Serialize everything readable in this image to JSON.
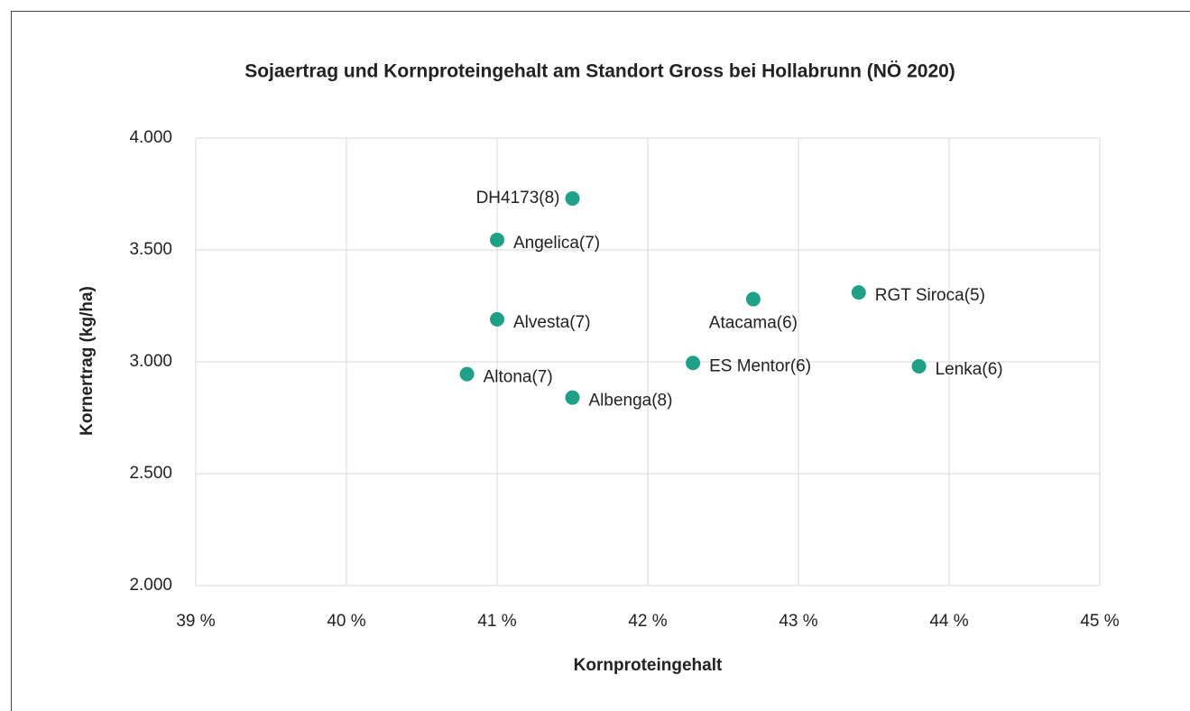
{
  "chart_data": {
    "type": "scatter",
    "title": "Sojaertrag und Kornproteingehalt am Standort Gross bei Hollabrunn (NÖ 2020)",
    "x_label": "Kornproteingehalt",
    "y_label": "Kornertrag (kg/ha)",
    "color": "#1fa187",
    "labels": [
      "DH4173(8)",
      "Angelica(7)",
      "Alvesta(7)",
      "Altona(7)",
      "Albenga(8)",
      "ES Mentor(6)",
      "Atacama(6)",
      "RGT Siroca(5)",
      "Lenka(6)"
    ],
    "x": [
      41.5,
      41.0,
      41.0,
      40.8,
      41.5,
      42.3,
      42.7,
      43.4,
      43.8
    ],
    "values": [
      3730,
      3545,
      3190,
      2945,
      2840,
      2995,
      3280,
      3310,
      2980
    ],
    "xlim": [
      39,
      45
    ],
    "xticks": [
      {
        "value": 39,
        "label": "39 %"
      },
      {
        "value": 40,
        "label": "40 %"
      },
      {
        "value": 41,
        "label": "41 %"
      },
      {
        "value": 42,
        "label": "42 %"
      },
      {
        "value": 43,
        "label": "43 %"
      },
      {
        "value": 44,
        "label": "44 %"
      },
      {
        "value": 45,
        "label": "45 %"
      }
    ],
    "ylim": [
      2000,
      4000
    ],
    "yticks": [
      {
        "value": 2000,
        "label": "2.000"
      },
      {
        "value": 2500,
        "label": "2.500"
      },
      {
        "value": 3000,
        "label": "3.000"
      },
      {
        "value": 3500,
        "label": "3.500"
      },
      {
        "value": 4000,
        "label": "4.000"
      }
    ],
    "grid": true
  }
}
